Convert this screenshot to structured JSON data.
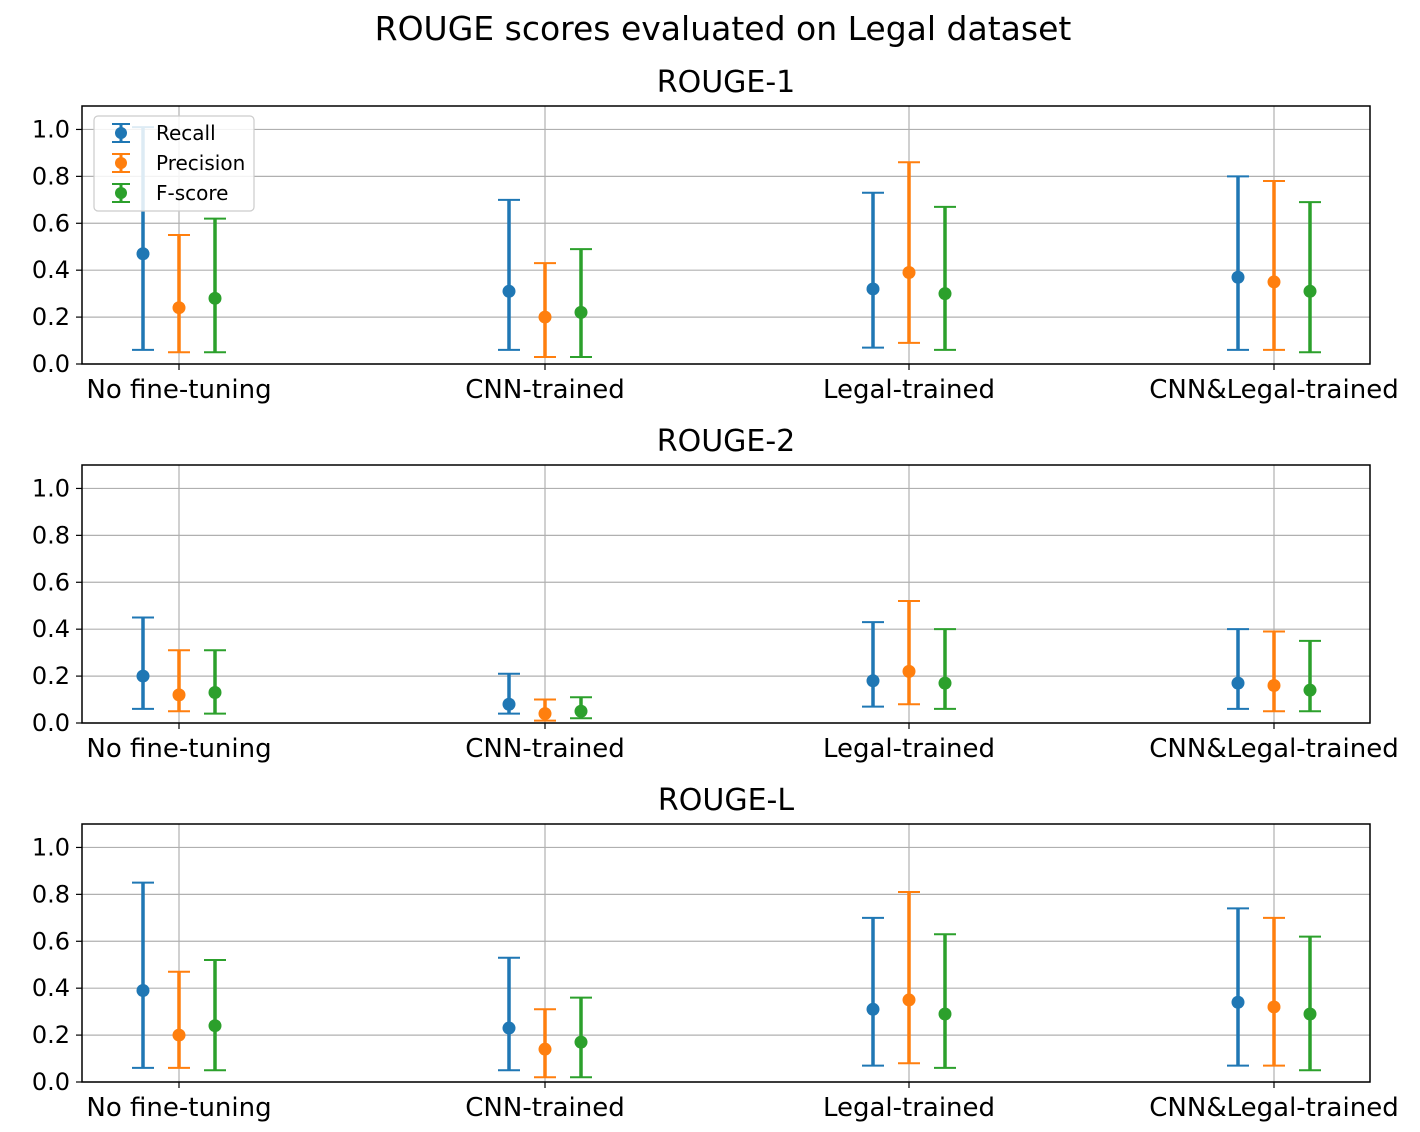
{
  "figure": {
    "title": "ROUGE scores evaluated on Legal dataset"
  },
  "chart_data": [
    {
      "type": "errorbar",
      "title": "ROUGE-1",
      "categories": [
        "No fine-tuning",
        "CNN-trained",
        "Legal-trained",
        "CNN&Legal-trained"
      ],
      "ylim": [
        0,
        1.1
      ],
      "yticks": [
        "0.0",
        "0.2",
        "0.4",
        "0.6",
        "0.8",
        "1.0"
      ],
      "grid": true,
      "legend": {
        "position": "top-left",
        "entries": [
          "Recall",
          "Precision",
          "F-score"
        ]
      },
      "series": [
        {
          "name": "Recall",
          "color": "#1f77b4",
          "values": [
            0.47,
            0.31,
            0.32,
            0.37
          ],
          "lower": [
            0.06,
            0.06,
            0.07,
            0.06
          ],
          "upper": [
            1.01,
            0.7,
            0.73,
            0.8
          ]
        },
        {
          "name": "Precision",
          "color": "#ff7f0e",
          "values": [
            0.24,
            0.2,
            0.39,
            0.35
          ],
          "lower": [
            0.05,
            0.03,
            0.09,
            0.06
          ],
          "upper": [
            0.55,
            0.43,
            0.86,
            0.78
          ]
        },
        {
          "name": "F-score",
          "color": "#2ca02c",
          "values": [
            0.28,
            0.22,
            0.3,
            0.31
          ],
          "lower": [
            0.05,
            0.03,
            0.06,
            0.05
          ],
          "upper": [
            0.62,
            0.49,
            0.67,
            0.69
          ]
        }
      ]
    },
    {
      "type": "errorbar",
      "title": "ROUGE-2",
      "categories": [
        "No fine-tuning",
        "CNN-trained",
        "Legal-trained",
        "CNN&Legal-trained"
      ],
      "ylim": [
        0,
        1.1
      ],
      "yticks": [
        "0.0",
        "0.2",
        "0.4",
        "0.6",
        "0.8",
        "1.0"
      ],
      "grid": true,
      "series": [
        {
          "name": "Recall",
          "color": "#1f77b4",
          "values": [
            0.2,
            0.08,
            0.18,
            0.17
          ],
          "lower": [
            0.06,
            0.04,
            0.07,
            0.06
          ],
          "upper": [
            0.45,
            0.21,
            0.43,
            0.4
          ]
        },
        {
          "name": "Precision",
          "color": "#ff7f0e",
          "values": [
            0.12,
            0.04,
            0.22,
            0.16
          ],
          "lower": [
            0.05,
            0.01,
            0.08,
            0.05
          ],
          "upper": [
            0.31,
            0.1,
            0.52,
            0.39
          ]
        },
        {
          "name": "F-score",
          "color": "#2ca02c",
          "values": [
            0.13,
            0.05,
            0.17,
            0.14
          ],
          "lower": [
            0.04,
            0.02,
            0.06,
            0.05
          ],
          "upper": [
            0.31,
            0.11,
            0.4,
            0.35
          ]
        }
      ]
    },
    {
      "type": "errorbar",
      "title": "ROUGE-L",
      "categories": [
        "No fine-tuning",
        "CNN-trained",
        "Legal-trained",
        "CNN&Legal-trained"
      ],
      "ylim": [
        0,
        1.1
      ],
      "yticks": [
        "0.0",
        "0.2",
        "0.4",
        "0.6",
        "0.8",
        "1.0"
      ],
      "grid": true,
      "series": [
        {
          "name": "Recall",
          "color": "#1f77b4",
          "values": [
            0.39,
            0.23,
            0.31,
            0.34
          ],
          "lower": [
            0.06,
            0.05,
            0.07,
            0.07
          ],
          "upper": [
            0.85,
            0.53,
            0.7,
            0.74
          ]
        },
        {
          "name": "Precision",
          "color": "#ff7f0e",
          "values": [
            0.2,
            0.14,
            0.35,
            0.32
          ],
          "lower": [
            0.06,
            0.02,
            0.08,
            0.07
          ],
          "upper": [
            0.47,
            0.31,
            0.81,
            0.7
          ]
        },
        {
          "name": "F-score",
          "color": "#2ca02c",
          "values": [
            0.24,
            0.17,
            0.29,
            0.29
          ],
          "lower": [
            0.05,
            0.02,
            0.06,
            0.05
          ],
          "upper": [
            0.52,
            0.36,
            0.63,
            0.62
          ]
        }
      ]
    }
  ]
}
